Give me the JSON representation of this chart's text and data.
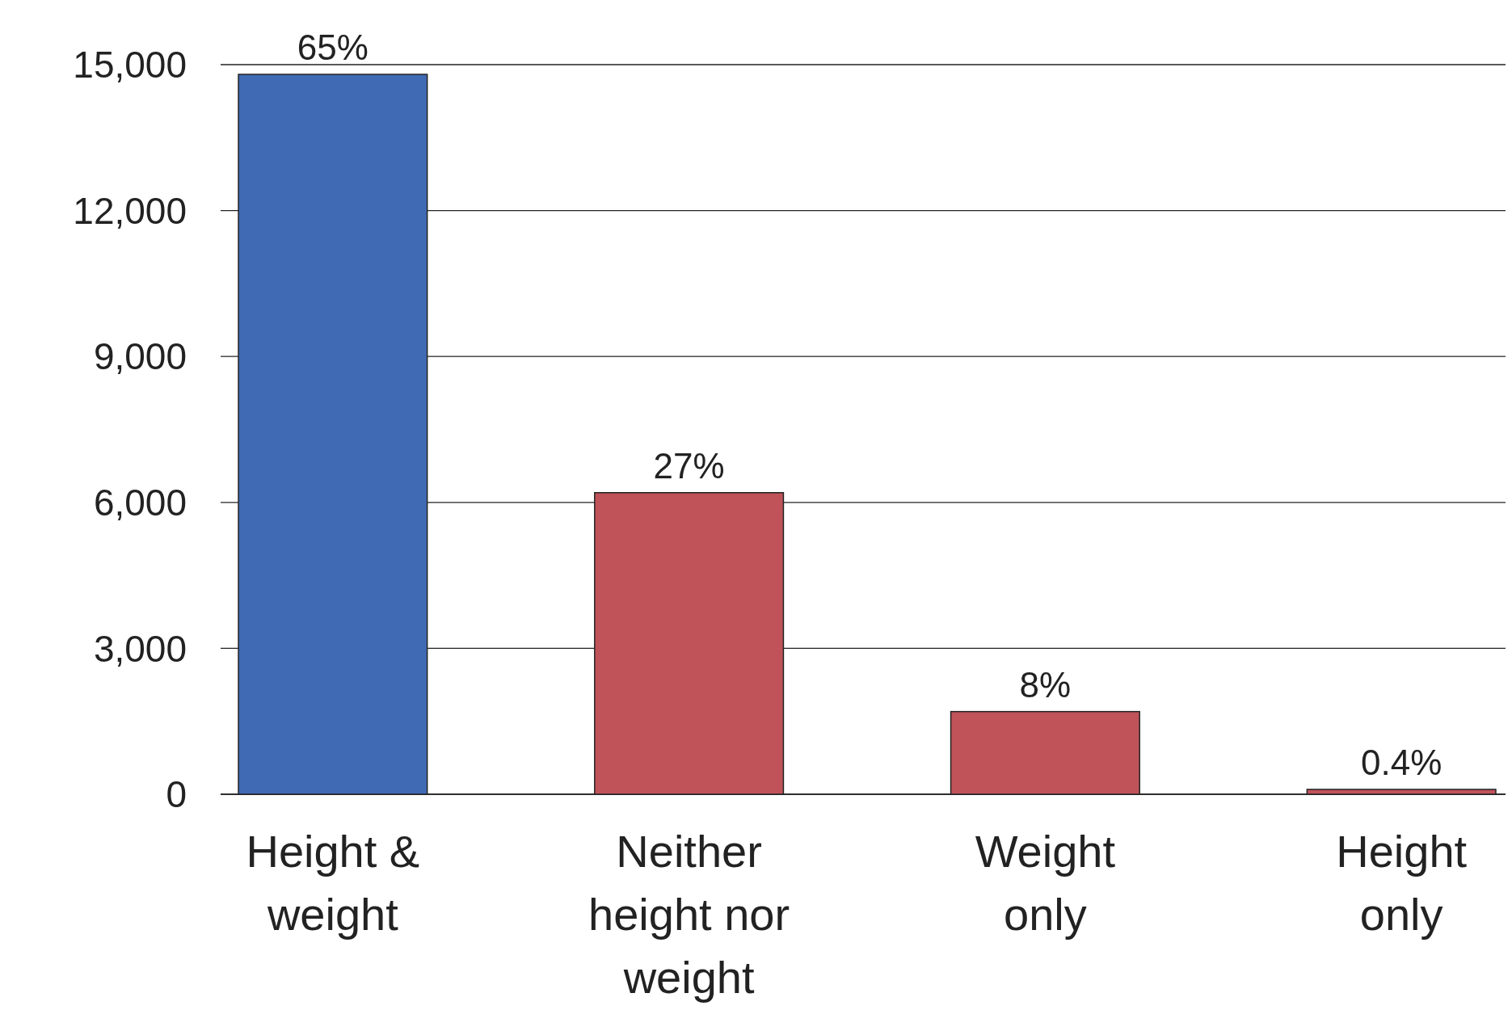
{
  "chart_data": {
    "type": "bar",
    "categories": [
      "Height & weight",
      "Neither height nor weight",
      "Weight only",
      "Height only"
    ],
    "values": [
      14800,
      6200,
      1700,
      100
    ],
    "colors": [
      "#416ab4",
      "#c0535a",
      "#c0535a",
      "#c0535a"
    ],
    "annotations": [
      {
        "text": "65%",
        "x": "Height & weight",
        "y": 14800
      },
      {
        "text": "27%",
        "x": "Neither height nor weight",
        "y": 6200
      },
      {
        "text": "8%",
        "x": "Weight only",
        "y": 1700
      },
      {
        "text": "0.4%",
        "x": "Height only",
        "y": 100
      }
    ],
    "ylim": [
      0,
      15000
    ],
    "yticks": [
      {
        "value": 0,
        "label": "0"
      },
      {
        "value": 3000,
        "label": "3,000"
      },
      {
        "value": 6000,
        "label": "6,000"
      },
      {
        "value": 9000,
        "label": "9,000"
      },
      {
        "value": 12000,
        "label": "12,000"
      },
      {
        "value": 15000,
        "label": "15,000"
      }
    ],
    "grid": "y"
  }
}
